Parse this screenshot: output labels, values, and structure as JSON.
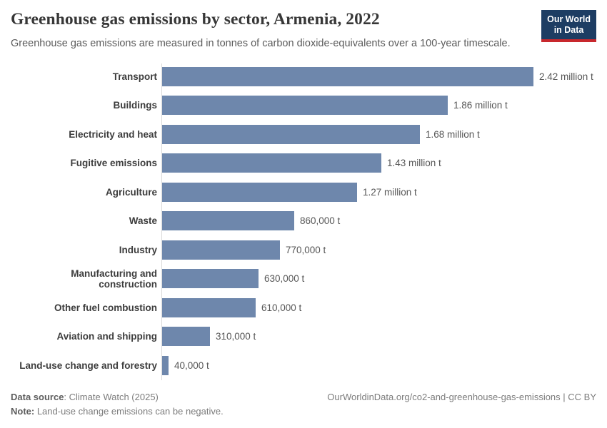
{
  "header": {
    "title": "Greenhouse gas emissions by sector, Armenia, 2022",
    "subtitle": "Greenhouse gas emissions are measured in tonnes of carbon dioxide-equivalents over a 100-year timescale.",
    "logo": {
      "line1": "Our World",
      "line2": "in Data"
    }
  },
  "chart_data": {
    "type": "bar",
    "orientation": "horizontal",
    "title": "Greenhouse gas emissions by sector, Armenia, 2022",
    "unit": "tonnes of carbon dioxide-equivalents",
    "categories": [
      "Transport",
      "Buildings",
      "Electricity and heat",
      "Fugitive emissions",
      "Agriculture",
      "Waste",
      "Industry",
      "Manufacturing and construction",
      "Other fuel combustion",
      "Aviation and shipping",
      "Land-use change and forestry"
    ],
    "values_million_t": [
      2.42,
      1.86,
      1.68,
      1.43,
      1.27,
      0.86,
      0.77,
      0.63,
      0.61,
      0.31,
      0.04
    ],
    "value_labels": [
      "2.42 million t",
      "1.86 million t",
      "1.68 million t",
      "1.43 million t",
      "1.27 million t",
      "860,000 t",
      "770,000 t",
      "630,000 t",
      "610,000 t",
      "310,000 t",
      "40,000 t"
    ],
    "xlim": [
      0,
      2.42
    ],
    "bar_color": "#6e87ac",
    "grid": false,
    "legend": "none"
  },
  "footer": {
    "source_label": "Data source",
    "source_rest": ": Climate Watch (2025)",
    "note_label": "Note:",
    "note_rest": " Land-use change emissions can be negative.",
    "link": "OurWorldinData.org/co2-and-greenhouse-gas-emissions | CC BY"
  }
}
